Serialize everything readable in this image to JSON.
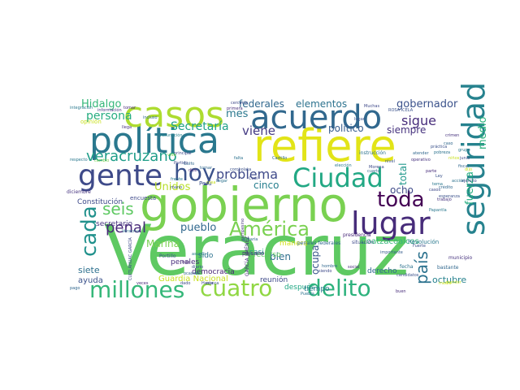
{
  "words": [
    {
      "text": "Veracruz",
      "color": "#5ec962"
    },
    {
      "text": "gobierno",
      "color": "#7ad151"
    },
    {
      "text": "refiere",
      "color": "#e2e418"
    },
    {
      "text": "política",
      "color": "#2a788e"
    },
    {
      "text": "casos",
      "color": "#addc30"
    },
    {
      "text": "acuerdo",
      "color": "#31688e"
    },
    {
      "text": "seguridad",
      "color": "#26828e"
    },
    {
      "text": "gente",
      "color": "#3e4a89"
    },
    {
      "text": "Ciudad",
      "color": "#22a884"
    },
    {
      "text": "lugar",
      "color": "#472c7a"
    },
    {
      "text": "hoy",
      "color": "#3b528b"
    },
    {
      "text": "toda",
      "color": "#440154"
    },
    {
      "text": "América",
      "color": "#7ad151"
    },
    {
      "text": "millones",
      "color": "#35b779"
    },
    {
      "text": "cuatro",
      "color": "#90d743"
    },
    {
      "text": "delito",
      "color": "#2db27d"
    },
    {
      "text": "cada",
      "color": "#21918c"
    },
    {
      "text": "veracruzano",
      "color": "#1f9e89"
    },
    {
      "text": "seis",
      "color": "#5ec962"
    },
    {
      "text": "país",
      "color": "#2c728e"
    },
    {
      "text": "penal",
      "color": "#482878"
    },
    {
      "text": "problema",
      "color": "#3e4989"
    },
    {
      "text": "Secretaría",
      "color": "#1fa188"
    },
    {
      "text": "persona",
      "color": "#27ad81"
    },
    {
      "text": "Hidalgo",
      "color": "#35b779"
    },
    {
      "text": "federales",
      "color": "#31688e"
    },
    {
      "text": "elementos",
      "color": "#2c728e"
    },
    {
      "text": "gobernador",
      "color": "#3b528b"
    },
    {
      "text": "sigue",
      "color": "#472d7b"
    },
    {
      "text": "viene",
      "color": "#443a83"
    },
    {
      "text": "mes",
      "color": "#2a788e"
    },
    {
      "text": "político",
      "color": "#365c8d"
    },
    {
      "text": "siempre",
      "color": "#46327e"
    },
    {
      "text": "medio",
      "color": "#2db27d"
    },
    {
      "text": "fuerza",
      "color": "#26ad81"
    },
    {
      "text": "total",
      "color": "#1f978b"
    },
    {
      "text": "Unidos",
      "color": "#b8de29"
    },
    {
      "text": "cinco",
      "color": "#277f8e"
    },
    {
      "text": "ocho",
      "color": "#3e4a89"
    },
    {
      "text": "pueblo",
      "color": "#31688e"
    },
    {
      "text": "secretario",
      "color": "#46337f"
    },
    {
      "text": "Marina",
      "color": "#7ad151"
    },
    {
      "text": "bien",
      "color": "#2e6e8e"
    },
    {
      "text": "ocupa",
      "color": "#39568c"
    },
    {
      "text": "siete",
      "color": "#2d708e"
    },
    {
      "text": "ayuda",
      "color": "#3b528b"
    },
    {
      "text": "penales",
      "color": "#472c7a"
    },
    {
      "text": "octubre",
      "color": "#26828e"
    },
    {
      "text": "reunión",
      "color": "#3e4a89"
    },
    {
      "text": "después",
      "color": "#22a884"
    },
    {
      "text": "Guardia Nacional",
      "color": "#c8e020"
    },
    {
      "text": "derecho",
      "color": "#31688e"
    },
    {
      "text": "Constitución",
      "color": "#3e4a89"
    },
    {
      "text": "Coatzacoalcos",
      "color": "#35b779"
    },
    {
      "text": "democracia",
      "color": "#482475"
    },
    {
      "text": "sido",
      "color": "#2c728e"
    },
    {
      "text": "manera",
      "color": "#d0e11c"
    },
    {
      "text": "recurso",
      "color": "#5ec962"
    },
    {
      "text": "tiempo",
      "color": "#2a788e"
    },
    {
      "text": "Perú",
      "color": "#3b528b"
    },
    {
      "text": "casi",
      "color": "#1f9e89"
    },
    {
      "text": "encuesta",
      "color": "#3e4989"
    },
    {
      "text": "paisano",
      "color": "#472c7a"
    },
    {
      "text": "diciembre",
      "color": "#46337f"
    },
    {
      "text": "fecha",
      "color": "#2c728e"
    },
    {
      "text": "candidatos",
      "color": "#3b528b"
    },
    {
      "text": "bastante",
      "color": "#31688e"
    },
    {
      "text": "municipio",
      "color": "#46327e"
    },
    {
      "text": "Revolución",
      "color": "#2a788e"
    },
    {
      "text": "situación",
      "color": "#3e4a89"
    },
    {
      "text": "presidencia",
      "color": "#482878"
    },
    {
      "text": "Portillo",
      "color": "#3b528b"
    },
    {
      "text": "pago",
      "color": "#31688e"
    },
    {
      "text": "GARCÍA JIMÉNEZ",
      "color": "#472c7a"
    },
    {
      "text": "CUITLÁHUAC GARCÍA",
      "color": "#3e4a89"
    },
    {
      "text": "penales federales",
      "color": "#31688e"
    },
    {
      "text": "instrucción",
      "color": "#2c728e"
    },
    {
      "text": "ROSA ICELA",
      "color": "#3b528b"
    },
    {
      "text": "integración",
      "color": "#2a788e"
    },
    {
      "text": "Castillo",
      "color": "#31688e"
    },
    {
      "text": "cercanía",
      "color": "#3e4989"
    },
    {
      "text": "primera",
      "color": "#472d7b"
    },
    {
      "text": "opinión",
      "color": "#c8e020"
    },
    {
      "text": "información",
      "color": "#46337f"
    },
    {
      "text": "respecto",
      "color": "#2a788e"
    },
    {
      "text": "cambio",
      "color": "#7ad151"
    },
    {
      "text": "importante",
      "color": "#365c8d"
    },
    {
      "text": "principal",
      "color": "#3e4a89"
    },
    {
      "text": "corcholata",
      "color": "#3b528b"
    },
    {
      "text": "vacunación",
      "color": "#26828e"
    },
    {
      "text": "Veracruz",
      "color": "#2c728e"
    },
    {
      "text": "llega",
      "color": "#46327e"
    },
    {
      "text": "tomar",
      "color": "#482878"
    },
    {
      "text": "incluso",
      "color": "#31688e"
    },
    {
      "text": "Muchas",
      "color": "#3e4989"
    },
    {
      "text": "lugar",
      "color": "#3b528b"
    },
    {
      "text": "Papantla",
      "color": "#2a788e"
    },
    {
      "text": "hombre",
      "color": "#31688e"
    },
    {
      "text": "siendo",
      "color": "#3e4a89"
    },
    {
      "text": "social",
      "color": "#472c7a"
    },
    {
      "text": "falta",
      "color": "#2c728e"
    },
    {
      "text": "nunca",
      "color": "#3b528b"
    },
    {
      "text": "guitaria",
      "color": "#31688e"
    },
    {
      "text": "campesino",
      "color": "#46337f"
    },
    {
      "text": "Hasta",
      "color": "#3e4989"
    },
    {
      "text": "rojo",
      "color": "#482878"
    },
    {
      "text": "asunto",
      "color": "#2a788e"
    },
    {
      "text": "ocasión",
      "color": "#31688e"
    },
    {
      "text": "diario",
      "color": "#3b528b"
    },
    {
      "text": "dado",
      "color": "#3e4a89"
    },
    {
      "text": "Puebla",
      "color": "#2c728e"
    },
    {
      "text": "buen",
      "color": "#472c7a"
    },
    {
      "text": "atender",
      "color": "#31688e"
    },
    {
      "text": "operativo",
      "color": "#46327e"
    },
    {
      "text": "Fuerte",
      "color": "#3b528b"
    },
    {
      "text": "elección",
      "color": "#2a788e"
    },
    {
      "text": "Cuál",
      "color": "#3e4989"
    },
    {
      "text": "Golfo",
      "color": "#31688e"
    },
    {
      "text": "veces",
      "color": "#482878"
    },
    {
      "text": "atender",
      "color": "#c8e020"
    },
    {
      "text": "práctica",
      "color": "#3b528b"
    },
    {
      "text": "pobreza",
      "color": "#2c728e"
    },
    {
      "text": "casos",
      "color": "#3e4a89"
    },
    {
      "text": "crédito",
      "color": "#31688e"
    },
    {
      "text": "trabajo",
      "color": "#46337f"
    },
    {
      "text": "tema",
      "color": "#2a788e"
    },
    {
      "text": "esperanza",
      "color": "#3b528b"
    },
    {
      "text": "medio",
      "color": "#c8e020"
    },
    {
      "text": "cuarto",
      "color": "#31688e"
    },
    {
      "text": "Morena",
      "color": "#3e4989"
    },
    {
      "text": "vida",
      "color": "#7ad151"
    },
    {
      "text": "cosa",
      "color": "#c8e020"
    },
    {
      "text": "llegar",
      "color": "#2c728e"
    },
    {
      "text": "nivel",
      "color": "#3b528b"
    },
    {
      "text": "tomar",
      "color": "#31688e"
    },
    {
      "text": "dice",
      "color": "#482878"
    },
    {
      "text": "Partido",
      "color": "#3e4a89"
    },
    {
      "text": "frente",
      "color": "#2a788e"
    },
    {
      "text": "mano",
      "color": "#3b528b"
    },
    {
      "text": "niños",
      "color": "#c8e020"
    },
    {
      "text": "fiscal",
      "color": "#31688e"
    },
    {
      "text": "ejército",
      "color": "#3e4989"
    },
    {
      "text": "acción",
      "color": "#2c728e"
    },
    {
      "text": "parte",
      "color": "#472c7a"
    },
    {
      "text": "Ley",
      "color": "#3b528b"
    },
    {
      "text": "caso",
      "color": "#31688e"
    },
    {
      "text": "crimen",
      "color": "#46327e"
    },
    {
      "text": "grupo",
      "color": "#2a788e"
    },
    {
      "text": "junio",
      "color": "#3e4a89"
    },
    {
      "text": "dijo",
      "color": "#c8e020"
    }
  ]
}
